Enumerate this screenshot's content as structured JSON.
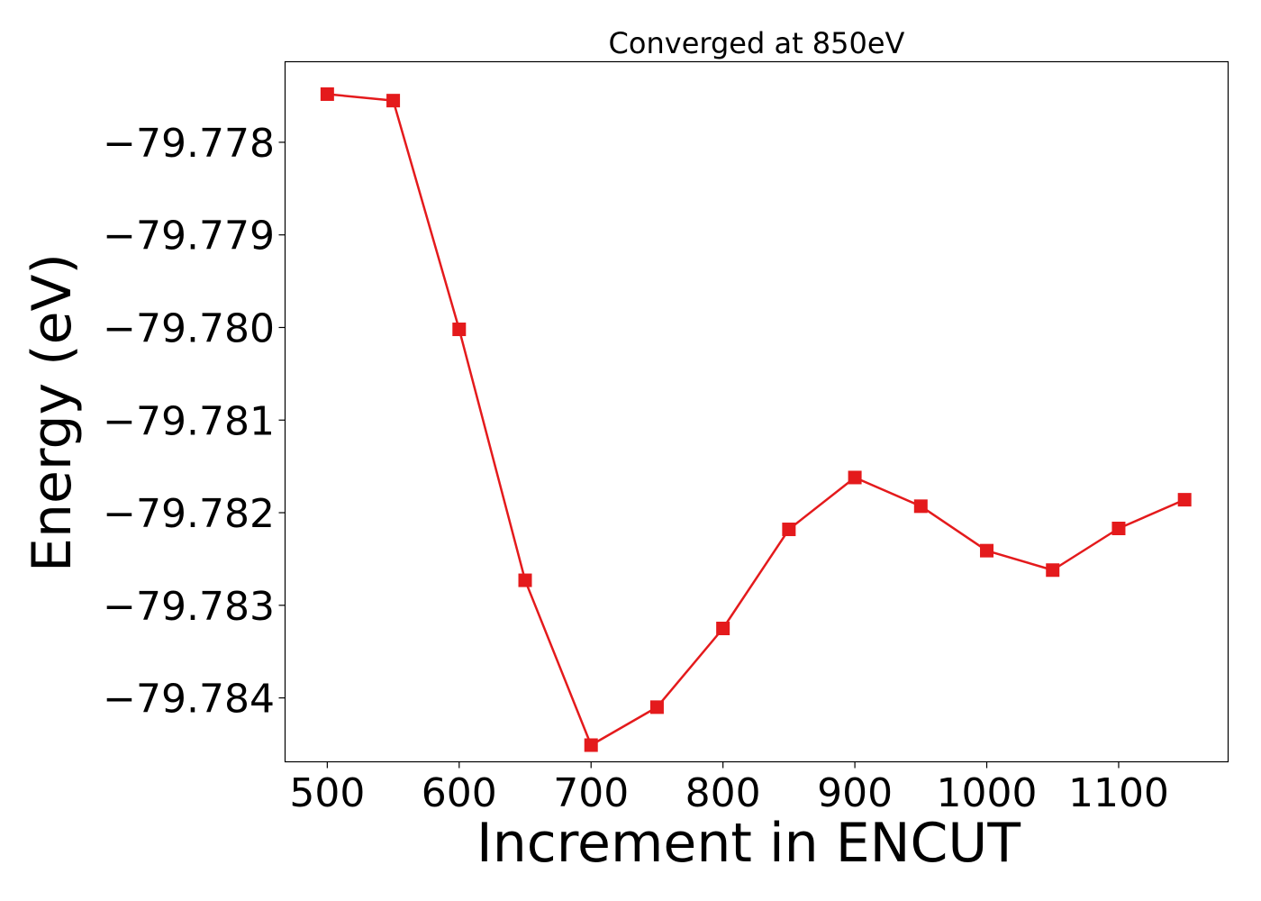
{
  "chart_data": {
    "type": "line",
    "title": "Converged at 850eV",
    "xlabel": "Increment in ENCUT",
    "ylabel": "Energy (eV)",
    "x": [
      500,
      550,
      600,
      650,
      700,
      750,
      800,
      850,
      900,
      950,
      1000,
      1050,
      1100,
      1150
    ],
    "series": [
      {
        "values": [
          -79.77748,
          -79.77755,
          -79.78002,
          -79.78273,
          -79.78451,
          -79.7841,
          -79.78325,
          -79.78218,
          -79.78162,
          -79.78193,
          -79.78241,
          -79.78262,
          -79.78217,
          -79.78186
        ],
        "color": "#e41a1c",
        "marker": "square"
      }
    ],
    "xlim": [
      468,
      1183
    ],
    "ylim": [
      -79.78469,
      -79.77713
    ],
    "xticks": [
      500,
      600,
      700,
      800,
      900,
      1000,
      1100
    ],
    "xtick_labels": [
      "500",
      "600",
      "700",
      "800",
      "900",
      "1000",
      "1100"
    ],
    "yticks": [
      -79.778,
      -79.779,
      -79.78,
      -79.781,
      -79.782,
      -79.783,
      -79.784
    ],
    "ytick_labels": [
      "−79.778",
      "−79.779",
      "−79.780",
      "−79.781",
      "−79.782",
      "−79.783",
      "−79.784"
    ],
    "grid": false,
    "legend": false
  }
}
